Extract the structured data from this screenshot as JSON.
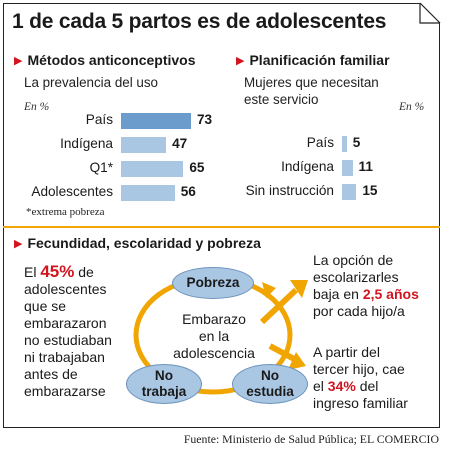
{
  "title": "1 de cada 5 partos es de adolescentes",
  "left_panel": {
    "heading": "Métodos anticonceptivos",
    "subtitle": "La prevalencia del uso",
    "unit": "En %",
    "footnote": "*extrema pobreza"
  },
  "right_panel": {
    "heading": "Planificación familiar",
    "subtitle_line1": "Mujeres que necesitan",
    "subtitle_line2": "este servicio",
    "unit": "En %"
  },
  "chart_data": [
    {
      "type": "bar",
      "orientation": "horizontal",
      "title": "Métodos anticonceptivos",
      "subtitle": "La prevalencia del uso",
      "unit": "En %",
      "categories": [
        "País",
        "Indígena",
        "Q1*",
        "Adolescentes"
      ],
      "values": [
        73,
        47,
        65,
        56
      ],
      "highlight_index": 0,
      "colors": {
        "highlight": "#6b9ccb",
        "bar": "#a9c6e2"
      },
      "xlim": [
        0,
        73
      ]
    },
    {
      "type": "bar",
      "orientation": "horizontal",
      "title": "Planificación familiar",
      "subtitle": "Mujeres que necesitan este servicio",
      "unit": "En %",
      "categories": [
        "País",
        "Indígena",
        "Sin instrucción"
      ],
      "values": [
        5,
        11,
        15
      ],
      "colors": {
        "bar": "#a9c6e2"
      },
      "xlim": [
        0,
        73
      ]
    }
  ],
  "bottom": {
    "heading": "Fecundidad, escolaridad y pobreza",
    "left_text": {
      "l1_pre": "El ",
      "l1_num": "45%",
      "l1_post": " de",
      "l2": "adolescentes",
      "l3": "que se",
      "l4": "embarazaron",
      "l5": "no estudiaban",
      "l6": "ni trabajaban",
      "l7": "antes de",
      "l8": "embarazarse"
    },
    "cycle": {
      "node_top": "Pobreza",
      "node_left_l1": "No",
      "node_left_l2": "trabaja",
      "node_right_l1": "No",
      "node_right_l2": "estudia",
      "center_l1": "Embarazo",
      "center_l2": "en la",
      "center_l3": "adolescencia"
    },
    "right_top": {
      "l1": "La opción de",
      "l2": "escolarizarles",
      "l3_pre": "baja en ",
      "l3_num": "2,5 años",
      "l4": "por cada hijo/a"
    },
    "right_bottom": {
      "l1": "A partir del",
      "l2": "tercer hijo, cae",
      "l3_pre": "el ",
      "l3_num": "34%",
      "l3_post": " del",
      "l4": "ingreso familiar"
    }
  },
  "source": "Fuente: Ministerio de Salud Pública; EL COMERCIO",
  "colors": {
    "accent_red": "#d1141f",
    "arrow_orange": "#f0a500",
    "bubble_blue": "#a9c6e2"
  }
}
